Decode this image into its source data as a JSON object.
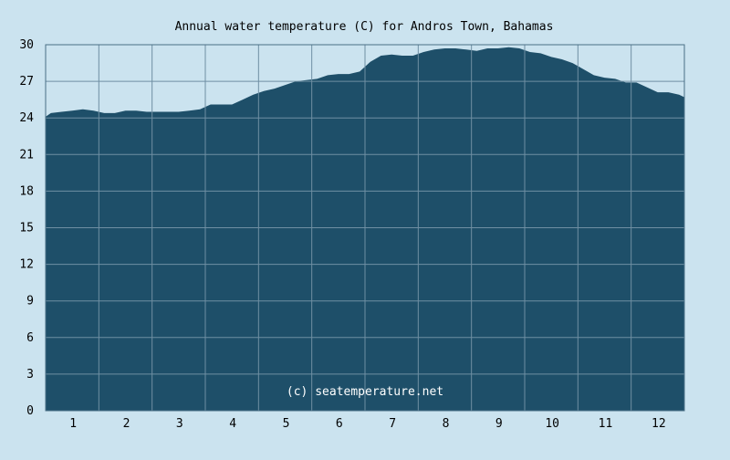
{
  "chart_data": {
    "type": "area",
    "title": "Annual water temperature (C) for Andros Town, Bahamas",
    "watermark": "(c) seatemperature.net",
    "xlabel": "",
    "ylabel": "",
    "ylim": [
      0,
      30
    ],
    "yticks": [
      0,
      3,
      6,
      9,
      12,
      15,
      18,
      21,
      24,
      27,
      30
    ],
    "xlim": [
      0.5,
      12.5
    ],
    "xticks": [
      1,
      2,
      3,
      4,
      5,
      6,
      7,
      8,
      9,
      10,
      11,
      12
    ],
    "grid": true,
    "colors": {
      "background": "#cbe3ef",
      "plot_background": "#cbe3ef",
      "fill": "#1e4f69",
      "grid": "#6f8fa3",
      "frame": "#4a6f86"
    },
    "series": [
      {
        "x": [
          0.5,
          0.6,
          0.8,
          1.0,
          1.2,
          1.4,
          1.6,
          1.8,
          2.0,
          2.2,
          2.4,
          2.6,
          2.8,
          3.0,
          3.2,
          3.4,
          3.6,
          3.8,
          4.0,
          4.2,
          4.4,
          4.6,
          4.8,
          5.0,
          5.2,
          5.4,
          5.6,
          5.8,
          6.0,
          6.2,
          6.4,
          6.6,
          6.8,
          7.0,
          7.2,
          7.4,
          7.6,
          7.8,
          8.0,
          8.2,
          8.4,
          8.6,
          8.8,
          9.0,
          9.2,
          9.4,
          9.6,
          9.8,
          10.0,
          10.2,
          10.4,
          10.6,
          10.8,
          11.0,
          11.2,
          11.4,
          11.6,
          11.8,
          12.0,
          12.2,
          12.4,
          12.5
        ],
        "values": [
          24.1,
          24.4,
          24.5,
          24.6,
          24.7,
          24.6,
          24.4,
          24.4,
          24.6,
          24.6,
          24.5,
          24.5,
          24.5,
          24.5,
          24.6,
          24.7,
          25.1,
          25.1,
          25.1,
          25.5,
          25.9,
          26.2,
          26.4,
          26.7,
          27.0,
          27.1,
          27.2,
          27.5,
          27.6,
          27.6,
          27.8,
          28.6,
          29.1,
          29.2,
          29.1,
          29.1,
          29.4,
          29.6,
          29.7,
          29.7,
          29.6,
          29.5,
          29.7,
          29.7,
          29.8,
          29.7,
          29.4,
          29.3,
          29.0,
          28.8,
          28.5,
          28.0,
          27.5,
          27.3,
          27.2,
          26.9,
          26.9,
          26.5,
          26.1,
          26.1,
          25.9,
          25.7
        ]
      }
    ]
  }
}
